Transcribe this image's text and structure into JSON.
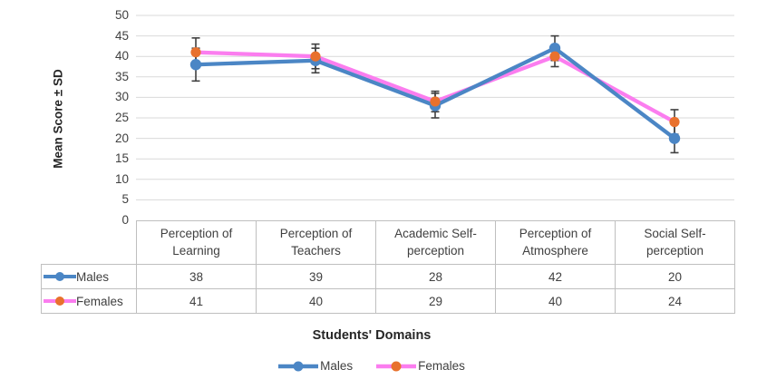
{
  "chart_data": {
    "type": "line",
    "title": "",
    "xlabel": "Students' Domains",
    "ylabel": "Mean Score ± SD",
    "ylim": [
      0,
      50
    ],
    "ytick_step": 5,
    "yticks": [
      0,
      5,
      10,
      15,
      20,
      25,
      30,
      35,
      40,
      45,
      50
    ],
    "grid": true,
    "legend_position": "bottom",
    "categories": [
      "Perception of Learning",
      "Perception of Teachers",
      "Academic Self-perception",
      "Perception of Atmosphere",
      "Social Self-perception"
    ],
    "series": [
      {
        "name": "Males",
        "values": [
          38,
          39,
          28,
          42,
          20
        ],
        "sd": [
          4,
          3,
          3,
          3,
          3.5
        ],
        "marker": "circle",
        "line_color": "#4B86C5",
        "marker_color": "#4B86C5"
      },
      {
        "name": "Females",
        "values": [
          41,
          40,
          29,
          40,
          24
        ],
        "sd": [
          3.5,
          3,
          2.5,
          2.5,
          3
        ],
        "marker": "circle",
        "line_color": "#FB7DEF",
        "marker_color": "#E8712D"
      }
    ],
    "data_table_shown": true,
    "colors": {
      "error_bar": "#404040",
      "gridline": "#D9D9D9",
      "table_border": "#BFBFBF",
      "tick_text": "#404040",
      "title_text": "#262626",
      "background": "#FFFFFF"
    }
  }
}
